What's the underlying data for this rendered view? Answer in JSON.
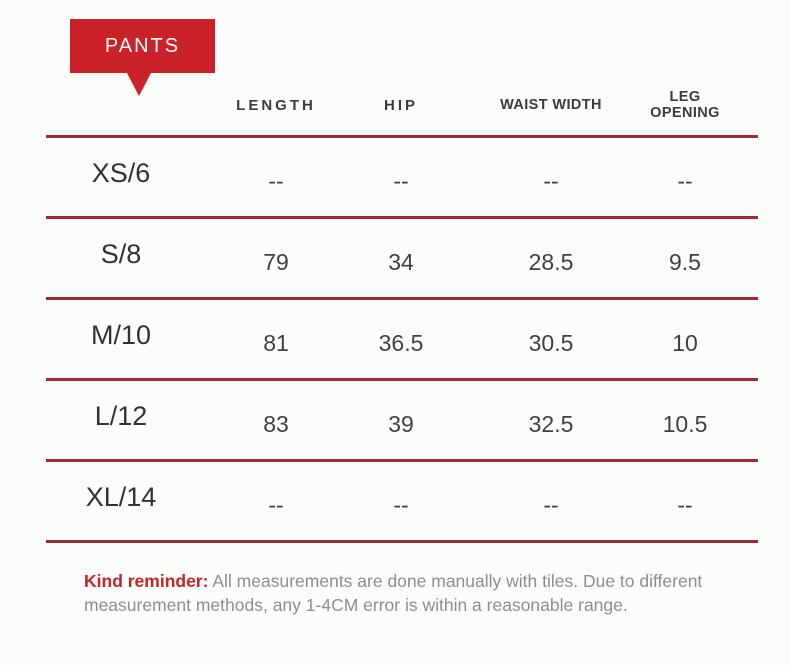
{
  "tag": {
    "label": "PANTS"
  },
  "chart_data": {
    "type": "table",
    "title": "PANTS",
    "columns": [
      "",
      "LENGTH",
      "HIP",
      "WAIST WIDTH",
      "LEG OPENING"
    ],
    "rows": [
      [
        "XS/6",
        "--",
        "--",
        "--",
        "--"
      ],
      [
        "S/8",
        "79",
        "34",
        "28.5",
        "9.5"
      ],
      [
        "M/10",
        "81",
        "36.5",
        "30.5",
        "10"
      ],
      [
        "L/12",
        "83",
        "39",
        "32.5",
        "10.5"
      ],
      [
        "XL/14",
        "--",
        "--",
        "--",
        "--"
      ]
    ]
  },
  "reminder": {
    "label": "Kind reminder:",
    "line1": "All measurements are done manually with tiles. Due to different",
    "line2": "measurement methods, any 1-4CM error is within a reasonable range."
  },
  "colors": {
    "tag_red": "#cb2129",
    "rule_red": "#a02a33",
    "reminder_red": "#c2242c",
    "header_text": "#3c3c3c",
    "value_text": "#414141",
    "background": "#fcfcfa"
  }
}
